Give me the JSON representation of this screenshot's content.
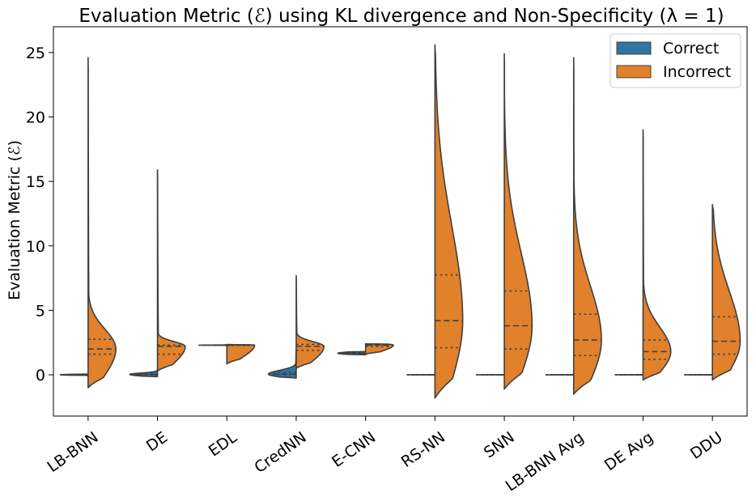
{
  "chart_data": {
    "type": "violin",
    "title": "Evaluation Metric (ℰ) using KL divergence and Non-Specificity (λ = 1)",
    "xlabel": "",
    "ylabel": "Evaluation Metric (ℰ)",
    "ylim": [
      -3.2,
      27
    ],
    "yticks": [
      0,
      5,
      10,
      15,
      20,
      25
    ],
    "split": true,
    "inner": "quartile",
    "legend": {
      "position": "top-right",
      "entries": [
        {
          "name": "Correct",
          "color": "#3274a1"
        },
        {
          "name": "Incorrect",
          "color": "#e1812c"
        }
      ]
    },
    "categories": [
      "LB-BNN",
      "DE",
      "EDL",
      "CredNN",
      "E-CNN",
      "RS-NN",
      "SNN",
      "LB-BNN Avg",
      "DE Avg",
      "DDU"
    ],
    "category_labels": [
      "LB-BNN",
      "DE",
      "EDL",
      "CredNN",
      "E-CNN",
      "RS-NN",
      "SNN",
      "LB-BNN Avg",
      "DE Avg",
      "DDU"
    ],
    "series": [
      {
        "name": "Correct",
        "color": "#3274a1",
        "distributions": [
          {
            "min": -0.05,
            "max": 0.06,
            "q1": -0.01,
            "median": 0.0,
            "q3": 0.01
          },
          {
            "min": -0.15,
            "max": 0.35,
            "q1": 0.0,
            "median": 0.03,
            "q3": 0.08
          },
          {
            "min": 2.28,
            "max": 2.32,
            "q1": 2.29,
            "median": 2.3,
            "q3": 2.31
          },
          {
            "min": -0.25,
            "max": 2.0,
            "q1": 0.02,
            "median": 0.05,
            "q3": 0.2
          },
          {
            "min": 1.55,
            "max": 1.8,
            "q1": 1.62,
            "median": 1.67,
            "q3": 1.72
          },
          {
            "min": -0.01,
            "max": 0.01,
            "q1": 0.0,
            "median": 0.0,
            "q3": 0.0
          },
          {
            "min": -0.01,
            "max": 0.01,
            "q1": 0.0,
            "median": 0.0,
            "q3": 0.0
          },
          {
            "min": -0.01,
            "max": 0.01,
            "q1": 0.0,
            "median": 0.0,
            "q3": 0.0
          },
          {
            "min": -0.01,
            "max": 0.01,
            "q1": 0.0,
            "median": 0.0,
            "q3": 0.0
          },
          {
            "min": -0.01,
            "max": 0.01,
            "q1": 0.0,
            "median": 0.0,
            "q3": 0.0
          }
        ]
      },
      {
        "name": "Incorrect",
        "color": "#e1812c",
        "distributions": [
          {
            "min": -1.0,
            "max": 24.6,
            "q1": 1.6,
            "median": 2.0,
            "q3": 2.75
          },
          {
            "min": 0.3,
            "max": 15.9,
            "q1": 1.6,
            "median": 2.2,
            "q3": 2.3
          },
          {
            "min": 0.85,
            "max": 2.35,
            "q1": 2.28,
            "median": 2.3,
            "q3": 2.32
          },
          {
            "min": 0.5,
            "max": 7.7,
            "q1": 1.9,
            "median": 2.2,
            "q3": 2.35
          },
          {
            "min": 1.6,
            "max": 2.4,
            "q1": 2.2,
            "median": 2.3,
            "q3": 2.35
          },
          {
            "min": -1.8,
            "max": 25.6,
            "q1": 2.1,
            "median": 4.2,
            "q3": 7.75
          },
          {
            "min": -1.1,
            "max": 24.9,
            "q1": 2.0,
            "median": 3.8,
            "q3": 6.5
          },
          {
            "min": -1.5,
            "max": 24.6,
            "q1": 1.5,
            "median": 2.7,
            "q3": 4.7
          },
          {
            "min": -0.4,
            "max": 19.0,
            "q1": 1.2,
            "median": 1.8,
            "q3": 2.7
          },
          {
            "min": -0.4,
            "max": 13.2,
            "q1": 1.6,
            "median": 2.6,
            "q3": 4.5
          }
        ]
      }
    ]
  }
}
